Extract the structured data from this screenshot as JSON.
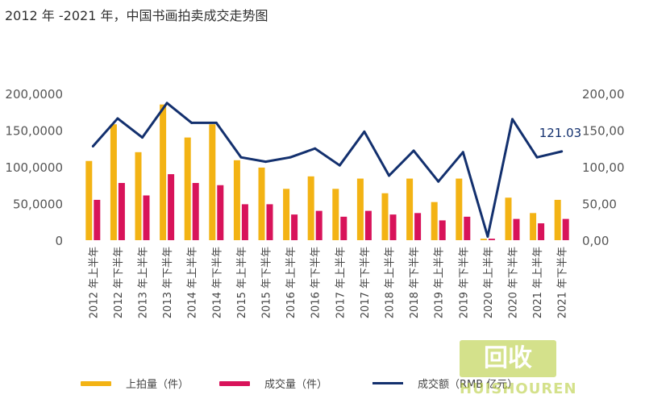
{
  "title": "2012 年 -2021 年，中国书画拍卖成交走势图",
  "colors": {
    "auction": "#f3b314",
    "deal_count": "#d8135a",
    "deal_amount": "#13306e",
    "axis_text": "#555555",
    "grid": "#e6e6e6"
  },
  "chart_data": {
    "type": "bar",
    "categories": [
      "2012 年上半年",
      "2012 年下半年",
      "2013 年上半年",
      "2013 年下半年",
      "2014 年上半年",
      "2014 年下半年",
      "2015 年上半年",
      "2015 年下半年",
      "2016 年上半年",
      "2016 年下半年",
      "2017 年上半年",
      "2017 年下半年",
      "2018 年上半年",
      "2018 年下半年",
      "2019 年上半年",
      "2019 年下半年",
      "2020 年上半年",
      "2020 年下半年",
      "2021 年上半年",
      "2021 年下半年"
    ],
    "series": [
      {
        "name": "上拍量（件）",
        "type": "bar",
        "axis": "left",
        "values": [
          108000,
          158000,
          120000,
          185000,
          140000,
          158000,
          109000,
          99000,
          70000,
          87000,
          70000,
          84000,
          64000,
          84000,
          52000,
          84000,
          2000,
          58000,
          37000,
          55000
        ]
      },
      {
        "name": "成交量（件）",
        "type": "bar",
        "axis": "left",
        "values": [
          55000,
          78000,
          61000,
          90000,
          78000,
          75000,
          49000,
          49000,
          35000,
          40000,
          32000,
          40000,
          35000,
          37000,
          27000,
          32000,
          2000,
          29000,
          23000,
          29000
        ]
      },
      {
        "name": "成交额（RMB 亿元）",
        "type": "line",
        "axis": "right",
        "values": [
          128,
          166,
          140,
          187,
          160,
          160,
          113,
          107,
          113,
          125,
          102,
          148,
          88,
          122,
          80,
          120,
          5,
          165,
          113,
          121.03
        ]
      }
    ],
    "left_ticks": [
      "0",
      "50,0000",
      "100,0000",
      "150,0000",
      "200,0000"
    ],
    "right_ticks": [
      "0,00",
      "50,00",
      "100,00",
      "150,00",
      "200,00"
    ],
    "left_ylim": [
      0,
      200000
    ],
    "right_ylim": [
      0,
      200
    ],
    "annotation": "121.03",
    "legend_position": "bottom"
  },
  "watermark": {
    "logo_text": "回收",
    "brand_text": "HUISHOUREN"
  }
}
